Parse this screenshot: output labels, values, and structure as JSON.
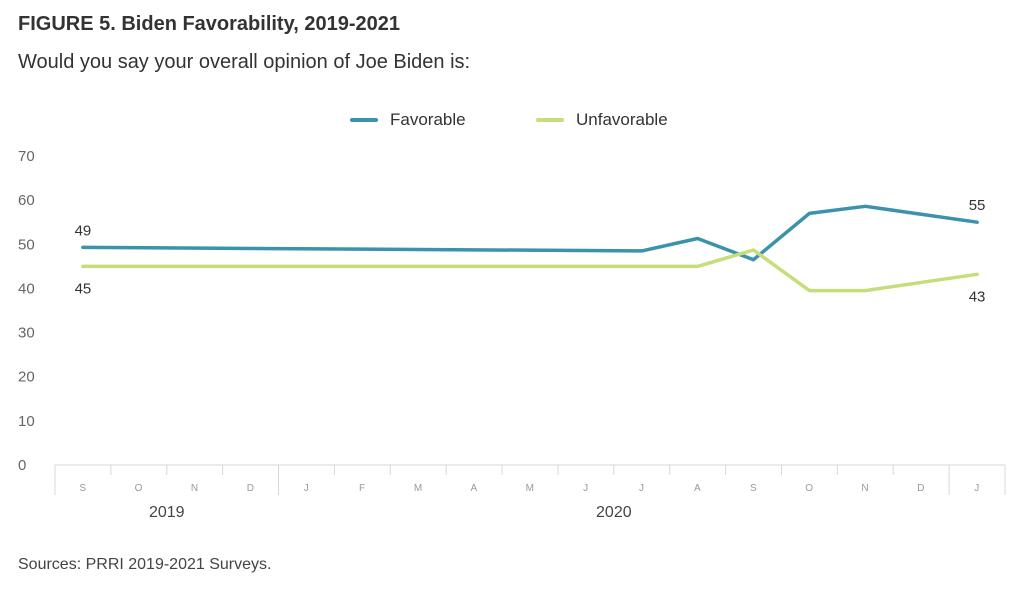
{
  "title": "FIGURE 5. Biden Favorability, 2019-2021",
  "subtitle": "Would you say your overall opinion of Joe Biden is:",
  "source": "Sources: PRRI 2019-2021 Surveys.",
  "colors": {
    "favorable": "#3a93aa",
    "unfavorable": "#c5de7a",
    "axis": "#d8d8d8",
    "text": "#333333"
  },
  "chart_data": {
    "type": "line",
    "title": "FIGURE 5. Biden Favorability, 2019-2021",
    "subtitle": "Would you say your overall opinion of Joe Biden is:",
    "xlabel": "",
    "ylabel": "",
    "x_tick_labels": [
      "S",
      "O",
      "N",
      "D",
      "J",
      "F",
      "M",
      "A",
      "M",
      "J",
      "J",
      "A",
      "S",
      "O",
      "N",
      "D",
      "J"
    ],
    "year_labels": [
      {
        "text": "2019",
        "center_index": 1.5
      },
      {
        "text": "2020",
        "center_index": 9.5
      }
    ],
    "ylim": [
      0,
      70
    ],
    "yticks": [
      0,
      10,
      20,
      30,
      40,
      50,
      60,
      70
    ],
    "grid": false,
    "legend_position": "top-center",
    "series": [
      {
        "name": "Favorable",
        "color": "#3a93aa",
        "points": [
          [
            0,
            49.3
          ],
          [
            10,
            48.5
          ],
          [
            11,
            51.3
          ],
          [
            12,
            46.5
          ],
          [
            13,
            57
          ],
          [
            14,
            58.6
          ],
          [
            16,
            55
          ]
        ]
      },
      {
        "name": "Unfavorable",
        "color": "#c5de7a",
        "points": [
          [
            0,
            45
          ],
          [
            11,
            45
          ],
          [
            12,
            48.7
          ],
          [
            13,
            39.5
          ],
          [
            14,
            39.5
          ],
          [
            16,
            43.2
          ]
        ]
      }
    ],
    "annotations": [
      {
        "series": 0,
        "point_index": 0,
        "text": "49",
        "position": "above"
      },
      {
        "series": 1,
        "point_index": 0,
        "text": "45",
        "position": "below"
      },
      {
        "series": 0,
        "point_index": 6,
        "text": "55",
        "position": "above"
      },
      {
        "series": 1,
        "point_index": 5,
        "text": "43",
        "position": "below"
      }
    ]
  }
}
